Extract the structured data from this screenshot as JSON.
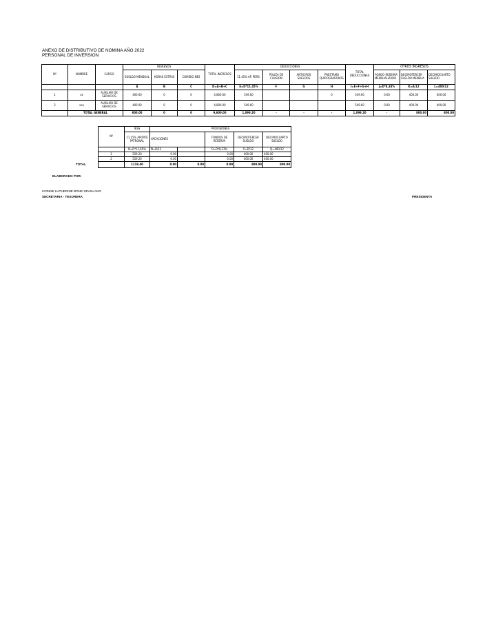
{
  "header": {
    "title": "ANEXO DE DISTRIBUTIVO DE NOMINA AÑO 2022",
    "subtitle": "PERSONAL DE INVERSION"
  },
  "main_table": {
    "col_no": "Nº",
    "col_nombre": "NOMBRE",
    "col_cargo": "CARGO",
    "group_ingresos": "INGRESOS",
    "group_deducciones": "DEDUCCIONES",
    "group_otros": "OTROS INGRESOS",
    "col_sueldo": "SUELDO MENSUAL",
    "col_horas": "HORAS EXTRAS",
    "col_comisiones": "COMISIO NES",
    "col_total_ingresos": "TOTAL INGRESOS",
    "col_ap_pers": "11.45% AP. PERS.",
    "col_poliza": "POLIZA DE CAUSION",
    "col_anticipos": "ANTICIPOS SUELDOS",
    "col_prestamo": "PRESTAMO QUIROGRAFARIOS",
    "col_total_ded": "TOTAL DEDUCCIONES",
    "col_fondo": "FONDO RESERVA MENSUALIZADO",
    "col_decimo3": "DECIMOTERCER SUELDO MENSUA",
    "col_decimo4": "DECIMOCUARTO SUELDO",
    "formulas": [
      "A",
      "B",
      "C",
      "D=A+B+C",
      "E=D*11.45%",
      "F",
      "G",
      "H",
      "I=E+F+G+H",
      "J=D*8,33%",
      "K=A/12",
      "L=400/12"
    ],
    "rows": [
      {
        "no": "1",
        "nombre": "xx",
        "cargo": "AUXILIAR DE SERVICIOS",
        "sueldo": "400.00",
        "horas": "0",
        "comisiones": "0",
        "total_ing": "4,800.00",
        "ap": "549.60",
        "poliza": "",
        "anticipos": "",
        "prestamo": "0",
        "total_ded": "549.60",
        "fondo": "0.00",
        "d3": "400.00",
        "d4": "400.00"
      },
      {
        "no": "2",
        "nombre": "xxx",
        "cargo": "AUXILIAR DE SERVICIOS",
        "sueldo": "400.00",
        "horas": "0",
        "comisiones": "0",
        "total_ing": "4,800.00",
        "ap": "549.60",
        "poliza": "",
        "anticipos": "",
        "prestamo": "",
        "total_ded": "549.60",
        "fondo": "0.00",
        "d3": "400.00",
        "d4": "400.00"
      }
    ],
    "total": {
      "label": "TOTAL GENERAL",
      "sueldo": "800.00",
      "horas": "0",
      "comisiones": "0",
      "total_ing": "9,600.00",
      "ap": "1,099.20",
      "poliza": "-",
      "anticipos": "-",
      "prestamo": "-",
      "total_ded": "1,099.20",
      "fondo": "-",
      "d3": "800.00",
      "d4": "800.00"
    }
  },
  "prov_table": {
    "col_no": "Nº",
    "group_iess": "IESS",
    "group_prov": "PROVISIONES",
    "col_aporte": "11,15% APORTE PATRONAL",
    "col_vacaciones": "VACACIONES",
    "col_fondos": "FONDOS DE RESERVA",
    "col_decimo3": "DECIMOTERCER SUELDO",
    "col_decimo4": "DECIMOCUARTO SUELDO",
    "formulas": [
      "N=D*11,65%",
      "Ñ=D/12",
      "",
      "O=D*8,33%",
      "P=D/12",
      "Q=400/12"
    ],
    "rows": [
      {
        "no": "1",
        "aporte": "559.20",
        "vac": "0.00",
        "vac2": "",
        "fondos": "0.00",
        "d3": "400.00",
        "d4": "400.00"
      },
      {
        "no": "2",
        "aporte": "559.20",
        "vac": "0.00",
        "vac2": "",
        "fondos": "0.00",
        "d3": "400.00",
        "d4": "400.00"
      }
    ],
    "total": {
      "label": "TOTAL",
      "aporte": "1118.40",
      "vac": "0.00",
      "vac2": "0.00",
      "fondos": "0.00",
      "d3": "800.00",
      "d4": "800.00"
    }
  },
  "footer": {
    "elaborado": "ELABORADO POR:",
    "nombre": "IVONNE KATHERINE BONE SEVILLANO",
    "cargo": "SECRETARIA - TESORERA",
    "presidenta": "PRESIDENTA"
  }
}
